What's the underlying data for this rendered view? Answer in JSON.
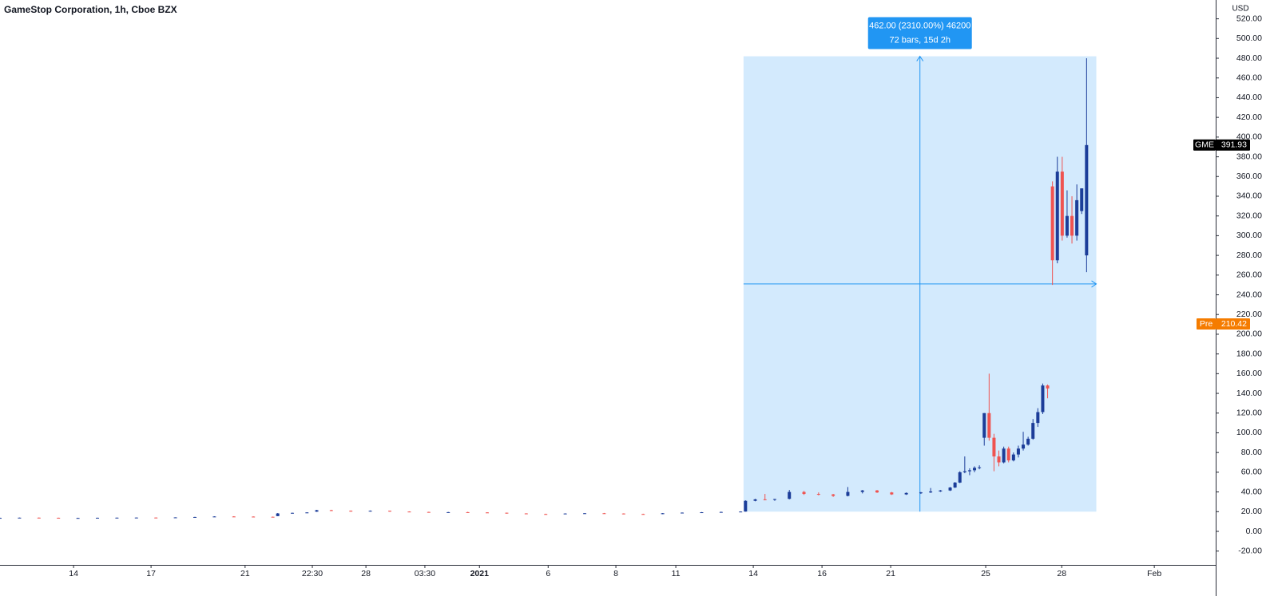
{
  "chart_data": {
    "type": "candlestick",
    "title": "GameStop Corporation, 1h, Cboe BZX",
    "y_unit": "USD",
    "up_color": "#1c3d99",
    "down_color": "#ef5350",
    "xlim": [
      0,
      249.5
    ],
    "ylim": [
      -34,
      539.1
    ],
    "xticks": [
      {
        "value": 15.1,
        "label": "14"
      },
      {
        "value": 31,
        "label": "17"
      },
      {
        "value": 50.3,
        "label": "21"
      },
      {
        "value": 64.1,
        "label": "22:30"
      },
      {
        "value": 75.1,
        "label": "28"
      },
      {
        "value": 87.2,
        "label": "03:30"
      },
      {
        "value": 98.4,
        "label": "2021"
      },
      {
        "value": 112.5,
        "label": "6"
      },
      {
        "value": 126.4,
        "label": "8"
      },
      {
        "value": 138.7,
        "label": "11"
      },
      {
        "value": 154.6,
        "label": "14"
      },
      {
        "value": 168.7,
        "label": "16"
      },
      {
        "value": 182.8,
        "label": "21"
      },
      {
        "value": 202.3,
        "label": "25"
      },
      {
        "value": 217.9,
        "label": "28"
      },
      {
        "value": 236.9,
        "label": "Feb"
      }
    ],
    "yticks": [
      {
        "value": -20,
        "label": "-20.00"
      },
      {
        "value": 0,
        "label": "0.00"
      },
      {
        "value": 20,
        "label": "20.00"
      },
      {
        "value": 40,
        "label": "40.00"
      },
      {
        "value": 60,
        "label": "60.00"
      },
      {
        "value": 80,
        "label": "80.00"
      },
      {
        "value": 100,
        "label": "100.00"
      },
      {
        "value": 120,
        "label": "120.00"
      },
      {
        "value": 140,
        "label": "140.00"
      },
      {
        "value": 160,
        "label": "160.00"
      },
      {
        "value": 180,
        "label": "180.00"
      },
      {
        "value": 200,
        "label": "200.00"
      },
      {
        "value": 220,
        "label": "220.00"
      },
      {
        "value": 240,
        "label": "240.00"
      },
      {
        "value": 260,
        "label": "260.00"
      },
      {
        "value": 280,
        "label": "280.00"
      },
      {
        "value": 300,
        "label": "300.00"
      },
      {
        "value": 320,
        "label": "320.00"
      },
      {
        "value": 340,
        "label": "340.00"
      },
      {
        "value": 360,
        "label": "360.00"
      },
      {
        "value": 380,
        "label": "380.00"
      },
      {
        "value": 400,
        "label": "400.00"
      },
      {
        "value": 420,
        "label": "420.00"
      },
      {
        "value": 440,
        "label": "440.00"
      },
      {
        "value": 460,
        "label": "460.00"
      },
      {
        "value": 480,
        "label": "480.00"
      },
      {
        "value": 500,
        "label": "500.00"
      },
      {
        "value": 520,
        "label": "520.00"
      }
    ],
    "x": [
      0,
      4,
      8,
      12,
      16,
      20,
      24,
      28,
      32,
      36,
      40,
      44,
      48,
      52,
      56,
      57,
      60,
      63,
      65,
      68,
      72,
      76,
      80,
      84,
      88,
      92,
      96,
      100,
      104,
      108,
      112,
      116,
      120,
      124,
      128,
      132,
      136,
      140,
      144,
      148,
      152,
      153,
      155,
      157,
      159,
      162,
      165,
      168,
      171,
      174,
      177,
      180,
      183,
      186,
      189,
      191,
      193,
      195,
      196,
      197,
      198,
      199,
      200,
      201,
      202,
      203,
      204,
      205,
      206,
      207,
      208,
      209,
      210,
      211,
      212,
      213,
      214,
      215,
      216,
      217,
      218,
      219,
      220,
      221,
      222,
      223
    ],
    "open": [
      13.5,
      13.7,
      13.9,
      13.8,
      13.4,
      13.6,
      13.8,
      13.9,
      14.0,
      13.9,
      14.2,
      14.6,
      15.1,
      15.0,
      14.8,
      15.5,
      18.2,
      18.8,
      20.0,
      21.5,
      20.9,
      20.3,
      20.9,
      20.1,
      19.7,
      19.4,
      19.5,
      19.2,
      18.9,
      18.2,
      17.6,
      17.5,
      18.1,
      18.4,
      18.1,
      17.6,
      17.5,
      18.4,
      19.0,
      19.4,
      19.7,
      20.1,
      31.0,
      32.5,
      32.0,
      33.0,
      40.0,
      38.0,
      37.5,
      36.0,
      40.0,
      41.5,
      39.5,
      37.5,
      39.0,
      39.5,
      40.5,
      41.5,
      44.5,
      49.5,
      60.0,
      61.0,
      62.0,
      64.5,
      95.0,
      120.0,
      95.0,
      76.0,
      70.0,
      84.0,
      72.0,
      78.0,
      84.0,
      88.0,
      94.0,
      110.0,
      121.0,
      148.0,
      350.0,
      275.0,
      365.0,
      300.0,
      320.0,
      300.0,
      325.0,
      280.0
    ],
    "high": [
      13.9,
      14.0,
      14.1,
      13.9,
      13.8,
      13.9,
      14.0,
      14.1,
      14.2,
      14.3,
      14.8,
      15.3,
      15.4,
      15.2,
      15.0,
      18.6,
      19.0,
      19.4,
      21.8,
      21.9,
      21.2,
      21.2,
      21.0,
      20.3,
      19.9,
      19.7,
      19.8,
      19.4,
      19.0,
      18.4,
      17.9,
      18.3,
      18.6,
      18.7,
      18.3,
      17.9,
      18.6,
      19.2,
      19.6,
      20.0,
      20.3,
      31.5,
      33.0,
      38.0,
      33.0,
      42.0,
      41.0,
      39.5,
      38.0,
      45.0,
      42.0,
      42.0,
      40.0,
      39.5,
      40.0,
      44.0,
      42.0,
      45.0,
      50.0,
      61.0,
      76.0,
      64.0,
      66.0,
      67.0,
      120.0,
      160.0,
      99.0,
      82.0,
      86.0,
      86.0,
      80.0,
      87.0,
      101.0,
      96.0,
      114.0,
      125.0,
      150.0,
      149.0,
      355.0,
      380.0,
      380.0,
      346.0,
      340.0,
      352.0,
      348.0,
      480.0
    ],
    "low": [
      13.3,
      13.5,
      13.6,
      13.2,
      13.2,
      13.4,
      13.6,
      13.7,
      13.8,
      13.8,
      14.1,
      14.5,
      14.8,
      14.6,
      14.5,
      15.4,
      18.0,
      18.5,
      19.8,
      20.6,
      20.0,
      20.1,
      19.9,
      19.5,
      19.2,
      19.0,
      19.1,
      18.7,
      18.0,
      17.4,
      17.2,
      17.4,
      17.9,
      17.9,
      17.3,
      17.1,
      17.4,
      18.2,
      18.8,
      19.1,
      19.5,
      20.0,
      30.5,
      31.5,
      31.0,
      32.5,
      37.0,
      36.5,
      35.0,
      35.5,
      38.5,
      39.0,
      37.0,
      37.0,
      38.0,
      39.0,
      40.0,
      41.0,
      44.0,
      49.0,
      59.0,
      57.0,
      60.0,
      63.0,
      87.0,
      92.0,
      61.0,
      66.0,
      69.0,
      70.0,
      71.0,
      75.0,
      82.0,
      87.0,
      93.0,
      106.0,
      119.0,
      135.0,
      250.0,
      272.0,
      295.0,
      298.0,
      292.0,
      295.0,
      322.0,
      263.0
    ],
    "close": [
      13.7,
      13.9,
      13.8,
      13.4,
      13.6,
      13.8,
      13.9,
      14.0,
      13.9,
      14.2,
      14.6,
      15.1,
      15.0,
      14.8,
      14.7,
      18.2,
      18.8,
      19.2,
      21.5,
      20.9,
      20.3,
      20.9,
      20.1,
      19.7,
      19.4,
      19.5,
      19.2,
      18.9,
      18.2,
      17.6,
      17.5,
      18.1,
      18.4,
      18.1,
      17.6,
      17.5,
      18.4,
      19.0,
      19.4,
      19.7,
      20.1,
      31.0,
      32.5,
      32.0,
      32.8,
      40.0,
      38.0,
      37.5,
      36.0,
      40.0,
      41.5,
      39.5,
      37.5,
      39.0,
      39.5,
      40.5,
      41.5,
      44.5,
      49.5,
      60.0,
      61.0,
      62.0,
      64.5,
      65.0,
      120.0,
      95.0,
      76.0,
      70.0,
      84.0,
      72.0,
      78.0,
      84.0,
      88.0,
      94.0,
      110.0,
      121.0,
      148.0,
      145.0,
      275.0,
      365.0,
      300.0,
      320.0,
      300.0,
      336.0,
      348.0,
      391.93
    ],
    "last_price": {
      "label": "GME",
      "value": 391.93,
      "color": "#000000"
    },
    "pre_price": {
      "label": "Pre",
      "value": 210.42,
      "color": "#f57c00"
    },
    "measure": {
      "x": [
        152.6,
        225
      ],
      "y": [
        20,
        482
      ],
      "color": "#2196f3",
      "label": "462.00 (2310.00%) 46200",
      "sublabel": "72 bars, 15d 2h"
    }
  }
}
